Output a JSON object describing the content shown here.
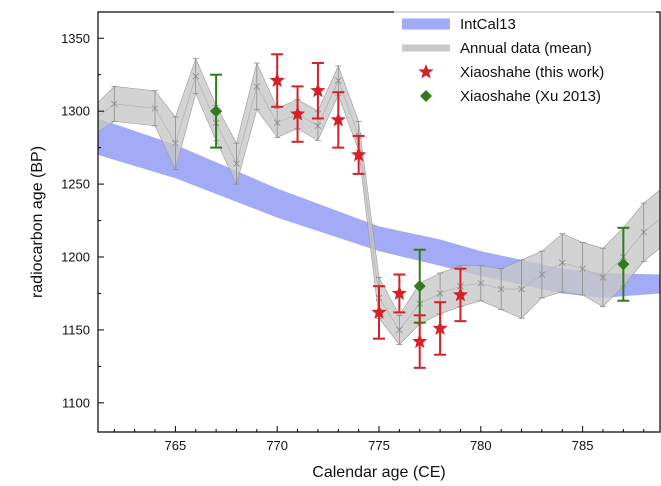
{
  "chart_data": {
    "type": "line",
    "xlabel": "Calendar age (CE)",
    "ylabel": "radiocarbon age (BP)",
    "xlim": [
      761.2,
      788.8
    ],
    "ylim": [
      1080,
      1368
    ],
    "x_ticks": [
      765,
      770,
      775,
      780,
      785
    ],
    "y_ticks": [
      1100,
      1150,
      1200,
      1250,
      1300,
      1350
    ],
    "x_minor_step": 1,
    "y_minor_step": 25,
    "grid": false,
    "legend_position": "top-right",
    "series": [
      {
        "name": "IntCal13",
        "kind": "band",
        "color": "#a3abf6",
        "x": [
          761.2,
          765,
          770,
          775,
          778,
          780,
          782,
          784,
          786,
          788.8
        ],
        "lower": [
          1270,
          1254,
          1227,
          1204,
          1194,
          1187,
          1181,
          1175,
          1172,
          1175
        ],
        "upper": [
          1295,
          1277,
          1247,
          1221,
          1212,
          1204,
          1198,
          1192,
          1189,
          1188
        ]
      },
      {
        "name": "Annual data (mean)",
        "kind": "band-with-errorbars",
        "color": "#c8c8c8",
        "x": [
          761.2,
          762,
          764,
          765,
          766,
          767,
          768,
          769,
          770,
          771,
          772,
          773,
          774,
          775,
          776,
          777,
          778,
          779,
          780,
          781,
          782,
          783,
          784,
          785,
          786,
          787,
          788,
          788.8
        ],
        "values": [
          1296,
          1305,
          1302,
          1278,
          1324,
          1292,
          1264,
          1317,
          1292,
          1298,
          1290,
          1321,
          1283,
          1172,
          1150,
          1168,
          1175,
          1180,
          1182,
          1178,
          1178,
          1188,
          1196,
          1192,
          1186,
          1200,
          1217,
          1226
        ],
        "errors": [
          10,
          12,
          12,
          18,
          12,
          12,
          14,
          16,
          10,
          10,
          10,
          10,
          10,
          14,
          10,
          14,
          14,
          14,
          12,
          14,
          20,
          16,
          20,
          18,
          20,
          20,
          20,
          20
        ]
      },
      {
        "name": "Xiaoshahe (this work)",
        "kind": "star-points",
        "color": "#d62028",
        "x": [
          770,
          771,
          772,
          773,
          774,
          775,
          776,
          777,
          778,
          779
        ],
        "values": [
          1321,
          1298,
          1314,
          1294,
          1270,
          1162,
          1175,
          1142,
          1151,
          1174
        ],
        "errors": [
          18,
          19,
          19,
          19,
          13,
          18,
          13,
          18,
          18,
          18
        ]
      },
      {
        "name": "Xiaoshahe (Xu 2013)",
        "kind": "diamond-points",
        "color": "#2e7d1a",
        "x": [
          767,
          777,
          787
        ],
        "values": [
          1300,
          1180,
          1195
        ],
        "errors": [
          25,
          25,
          25
        ]
      }
    ]
  }
}
